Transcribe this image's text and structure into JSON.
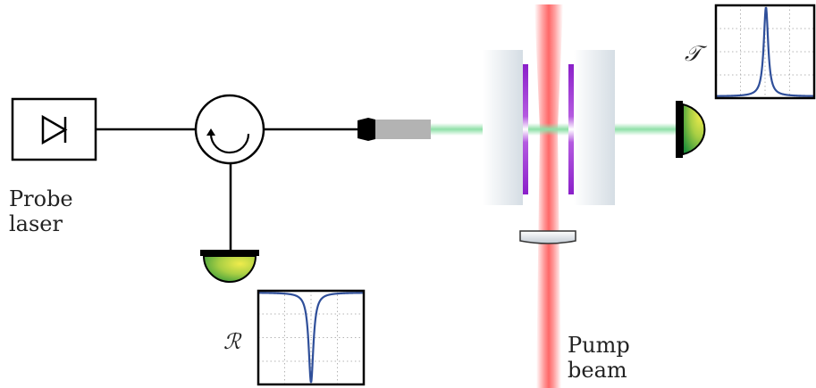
{
  "labels": {
    "probe_laser_line1": "Probe",
    "probe_laser_line2": "laser",
    "pump_beam_line1": "Pump",
    "pump_beam_line2": "beam",
    "reflection_symbol": "ℛ",
    "transmission_symbol": "𝒯"
  },
  "colors": {
    "line": "#000000",
    "pump_beam": "#ff4d4d",
    "probe_beam": "#8fe0a8",
    "fiber_connector": "#b3b3b3",
    "mirror_coating": "#8a1fc9",
    "mirror_substrate": "#d5dde4",
    "detector_light": "#e9e84a",
    "detector_dark": "#1f8f3a",
    "plot_curve": "#2f4f9a",
    "plot_grid": "#b5b5b5"
  },
  "icons": {
    "laser": "diode-icon",
    "circulator": "circulator-icon",
    "detector": "photodetector-icon",
    "lens": "lens-icon"
  }
}
